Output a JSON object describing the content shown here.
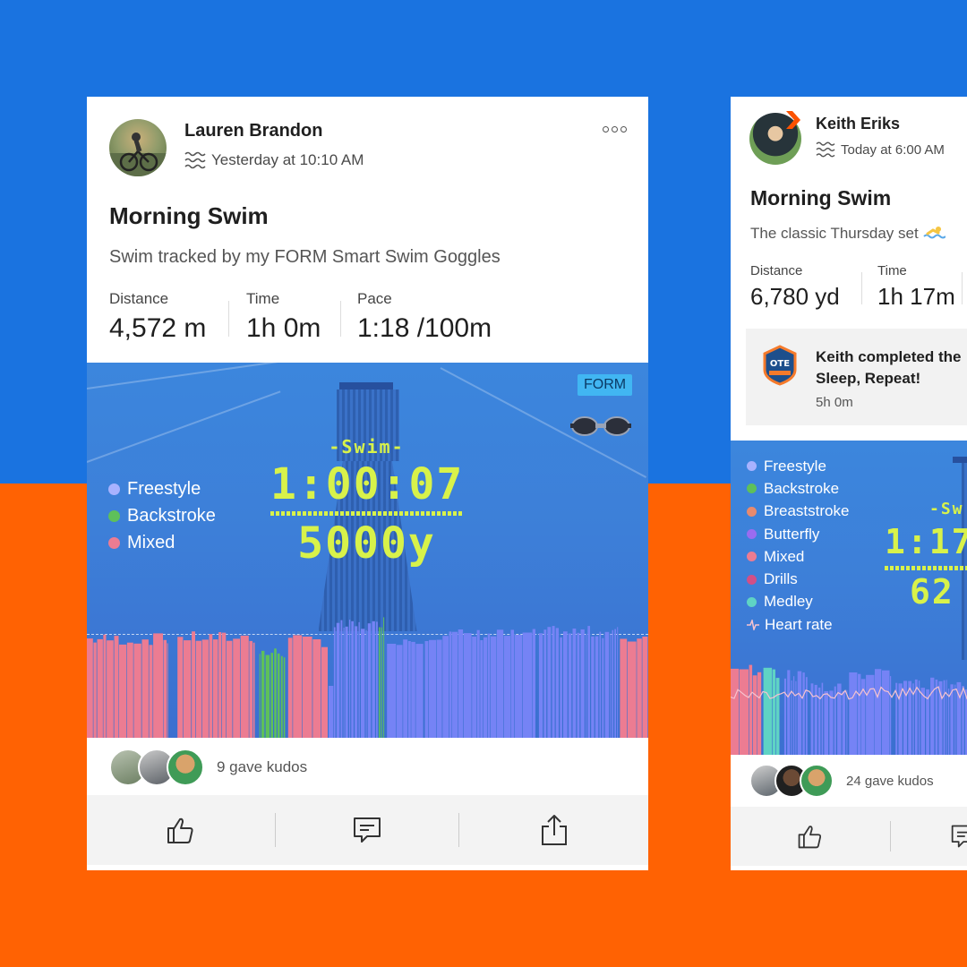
{
  "posts": [
    {
      "athlete": "Lauren Brandon",
      "timestamp": "Yesterday at 10:10 AM",
      "title": "Morning Swim",
      "description": "Swim tracked by my FORM Smart Swim Goggles",
      "stats": [
        {
          "label": "Distance",
          "value": "4,572 m"
        },
        {
          "label": "Time",
          "value": "1h 0m"
        },
        {
          "label": "Pace",
          "value": "1:18 /100m"
        }
      ],
      "badge": "FORM",
      "display": {
        "heading": "-Swim-",
        "time": "1:00:07",
        "distance": "5000y"
      },
      "legend": [
        "Freestyle",
        "Backstroke",
        "Mixed"
      ],
      "kudos": "9 gave kudos"
    },
    {
      "athlete": "Keith Eriks",
      "timestamp": "Today at 6:00 AM",
      "title": "Morning Swim",
      "description": "The classic Thursday set",
      "stats": [
        {
          "label": "Distance",
          "value": "6,780 yd"
        },
        {
          "label": "Time",
          "value": "1h 17m"
        }
      ],
      "challenge": {
        "line1": "Keith completed the",
        "line2": "Sleep, Repeat!",
        "duration": "5h 0m"
      },
      "display": {
        "heading": "-Sw",
        "time": "1:17",
        "distance": "62"
      },
      "legend": [
        "Freestyle",
        "Backstroke",
        "Breaststroke",
        "Butterfly",
        "Mixed",
        "Drills",
        "Medley",
        "Heart rate"
      ],
      "kudos": "24 gave kudos"
    }
  ],
  "colors": {
    "blue_bg": "#1a73e0",
    "orange_bg": "#ff6203",
    "freestyle": "#7583f5",
    "backstroke": "#5ec05a",
    "breaststroke": "#e88a6e",
    "butterfly": "#9a6cf0",
    "mixed": "#ec7c92",
    "drills": "#d24f86",
    "medley": "#5fd3c4",
    "lcd": "#d8f24a"
  }
}
